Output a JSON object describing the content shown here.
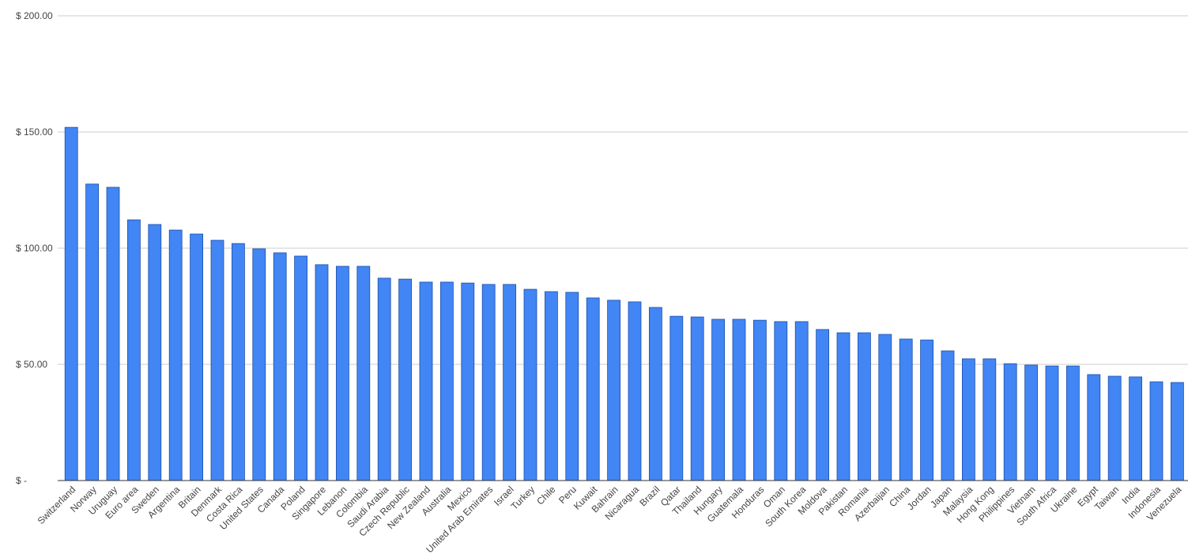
{
  "chart_data": {
    "type": "bar",
    "categories": [
      "Switzerland",
      "Norway",
      "Uruguay",
      "Euro area",
      "Sweden",
      "Argentina",
      "Britain",
      "Denmark",
      "Costa Rica",
      "United States",
      "Canada",
      "Poland",
      "Singapore",
      "Lebanon",
      "Colombia",
      "Saudi Arabia",
      "Czech Republic",
      "New Zealand",
      "Australia",
      "Mexico",
      "United Arab Emirates",
      "Israel",
      "Turkey",
      "Chile",
      "Peru",
      "Kuwait",
      "Bahrain",
      "Nicaragua",
      "Brazil",
      "Qatar",
      "Thailand",
      "Hungary",
      "Guatemala",
      "Honduras",
      "Oman",
      "South Korea",
      "Moldova",
      "Pakistan",
      "Romania",
      "Azerbaijan",
      "China",
      "Jordan",
      "Japan",
      "Malaysia",
      "Hong Kong",
      "Philippines",
      "Vietnam",
      "South Africa",
      "Ukraine",
      "Egypt",
      "Taiwan",
      "India",
      "Indonesia",
      "Venezuela"
    ],
    "values": [
      152,
      127.6,
      126.2,
      112.2,
      110.2,
      107.8,
      106.1,
      103.4,
      102,
      99.7,
      98,
      96.6,
      92.9,
      92.2,
      92.2,
      87.1,
      86.7,
      85.4,
      85.4,
      85,
      84.4,
      84.4,
      82.3,
      81.3,
      81,
      78.6,
      77.6,
      76.9,
      74.5,
      70.7,
      70.4,
      69.4,
      69.4,
      69,
      68.4,
      68.4,
      65,
      63.6,
      63.6,
      62.9,
      60.9,
      60.5,
      55.8,
      52.4,
      52.4,
      50.3,
      49.7,
      49.3,
      49.3,
      45.6,
      44.9,
      44.6,
      42.5,
      42.2
    ],
    "color": "#4285f4",
    "ylim": [
      0,
      200
    ],
    "yticks": [
      {
        "value": 0,
        "label": "$ -"
      },
      {
        "value": 50,
        "label": "$ 50.00"
      },
      {
        "value": 100,
        "label": "$ 100.00"
      },
      {
        "value": 150,
        "label": "$ 150.00"
      },
      {
        "value": 200,
        "label": "$ 200.00"
      }
    ],
    "grid": true
  }
}
